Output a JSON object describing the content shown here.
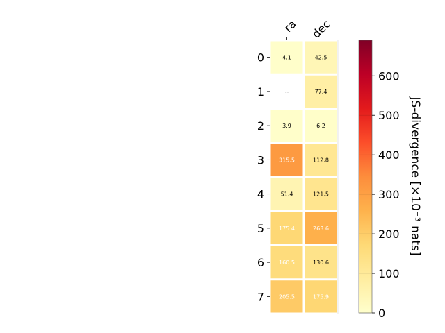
{
  "chart_data": {
    "type": "heatmap",
    "columns": [
      "ra",
      "dec"
    ],
    "rows": [
      "0",
      "1",
      "2",
      "3",
      "4",
      "5",
      "6",
      "7"
    ],
    "values": [
      [
        4.1,
        42.5
      ],
      [
        null,
        77.4
      ],
      [
        3.9,
        6.2
      ],
      [
        315.5,
        112.8
      ],
      [
        51.4,
        121.5
      ],
      [
        175.4,
        263.6
      ],
      [
        160.5,
        130.6
      ],
      [
        205.5,
        175.9
      ]
    ],
    "cell_labels": [
      [
        "4.1",
        "42.5"
      ],
      [
        "--",
        "77.4"
      ],
      [
        "3.9",
        "6.2"
      ],
      [
        "315.5",
        "112.8"
      ],
      [
        "51.4",
        "121.5"
      ],
      [
        "175.4",
        "263.6"
      ],
      [
        "160.5",
        "130.6"
      ],
      [
        "205.5",
        "175.9"
      ]
    ],
    "label_colors": [
      [
        "#000000",
        "#000000"
      ],
      [
        "#000000",
        "#000000"
      ],
      [
        "#000000",
        "#000000"
      ],
      [
        "#ffffff",
        "#000000"
      ],
      [
        "#000000",
        "#000000"
      ],
      [
        "#ffffff",
        "#ffffff"
      ],
      [
        "#ffffff",
        "#000000"
      ],
      [
        "#ffffff",
        "#ffffff"
      ]
    ],
    "colorbar": {
      "label": "JS-divergence [×10⁻³ nats]",
      "range": [
        0,
        690
      ],
      "ticks": [
        0,
        100,
        200,
        300,
        400,
        500,
        600
      ],
      "tick_labels": [
        "0",
        "100",
        "200",
        "300",
        "400",
        "500",
        "600"
      ],
      "colormap": "YlOrRd"
    },
    "cell_separator_color": "#ffffff",
    "grid": false
  }
}
